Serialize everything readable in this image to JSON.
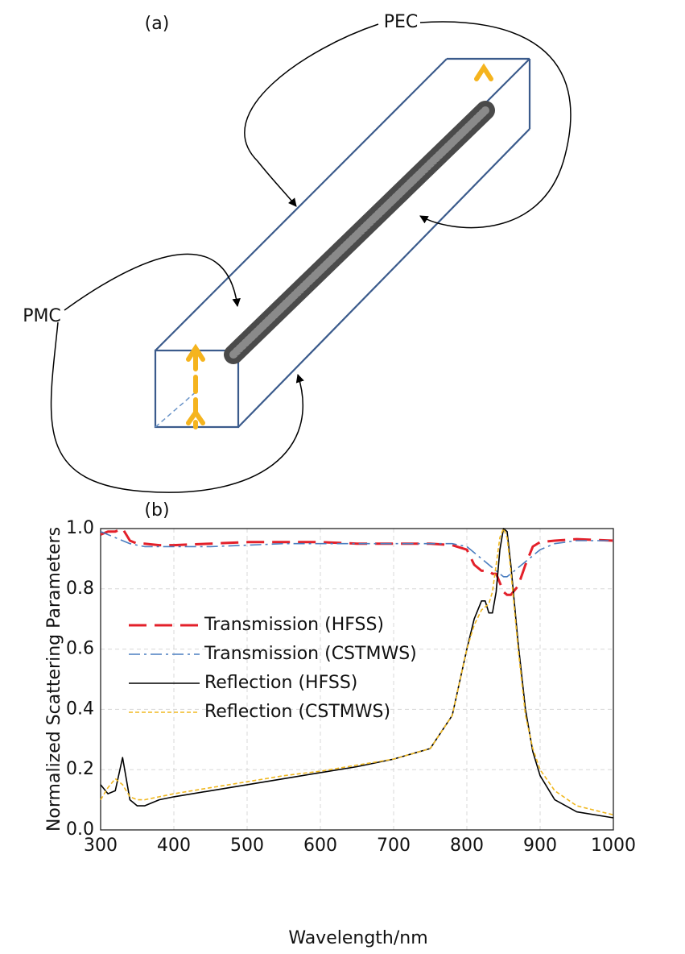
{
  "diagram": {
    "panel_label": "(a)",
    "top_label": "PEC",
    "side_label": "PMC"
  },
  "chart_data": {
    "type": "line",
    "panel_label": "(b)",
    "x_label": "Wavelength/nm",
    "y_label": "Normalized Scattering Parameters",
    "x": [
      300,
      310,
      320,
      330,
      340,
      350,
      360,
      380,
      400,
      450,
      500,
      550,
      600,
      650,
      700,
      750,
      780,
      800,
      810,
      820,
      825,
      830,
      835,
      840,
      845,
      850,
      855,
      860,
      870,
      880,
      890,
      900,
      920,
      950,
      1000
    ],
    "series": [
      {
        "name": "Transmission (HFSS)",
        "color": "#e3202a",
        "style": "dashed",
        "values": [
          0.98,
          0.99,
          0.99,
          1.0,
          0.96,
          0.95,
          0.95,
          0.945,
          0.945,
          0.95,
          0.955,
          0.955,
          0.955,
          0.95,
          0.95,
          0.95,
          0.945,
          0.93,
          0.88,
          0.86,
          0.86,
          0.86,
          0.85,
          0.85,
          0.82,
          0.79,
          0.78,
          0.78,
          0.81,
          0.88,
          0.94,
          0.955,
          0.96,
          0.965,
          0.96
        ]
      },
      {
        "name": "Transmission (CSTMWS)",
        "color": "#4a7ec0",
        "style": "dashdot",
        "values": [
          0.99,
          0.98,
          0.97,
          0.96,
          0.95,
          0.945,
          0.94,
          0.94,
          0.94,
          0.94,
          0.945,
          0.95,
          0.95,
          0.95,
          0.95,
          0.95,
          0.95,
          0.94,
          0.92,
          0.9,
          0.89,
          0.88,
          0.87,
          0.86,
          0.85,
          0.84,
          0.84,
          0.85,
          0.87,
          0.89,
          0.91,
          0.93,
          0.95,
          0.96,
          0.96
        ]
      },
      {
        "name": "Reflection (HFSS)",
        "color": "#000000",
        "style": "solid",
        "values": [
          0.15,
          0.12,
          0.13,
          0.24,
          0.1,
          0.08,
          0.08,
          0.1,
          0.11,
          0.13,
          0.15,
          0.17,
          0.19,
          0.21,
          0.235,
          0.27,
          0.38,
          0.6,
          0.7,
          0.76,
          0.76,
          0.72,
          0.72,
          0.79,
          0.93,
          1.0,
          0.99,
          0.88,
          0.62,
          0.4,
          0.26,
          0.18,
          0.1,
          0.06,
          0.04
        ]
      },
      {
        "name": "Reflection (CSTMWS)",
        "color": "#f0b820",
        "style": "dotted",
        "values": [
          0.1,
          0.14,
          0.17,
          0.15,
          0.11,
          0.1,
          0.1,
          0.11,
          0.12,
          0.14,
          0.16,
          0.18,
          0.195,
          0.215,
          0.235,
          0.27,
          0.38,
          0.6,
          0.68,
          0.73,
          0.74,
          0.75,
          0.79,
          0.88,
          0.97,
          1.0,
          0.97,
          0.86,
          0.6,
          0.38,
          0.27,
          0.2,
          0.13,
          0.08,
          0.05
        ]
      }
    ],
    "xlim": [
      300,
      1000
    ],
    "xticks": [
      300,
      400,
      500,
      600,
      700,
      800,
      900,
      1000
    ],
    "ylim": [
      0,
      1
    ],
    "yticks": [
      {
        "value": 0,
        "label": "0.0"
      },
      0.2,
      0.4,
      0.6,
      0.8,
      {
        "value": 1,
        "label": "1.0"
      }
    ],
    "grid": true,
    "legend": "upper left"
  }
}
